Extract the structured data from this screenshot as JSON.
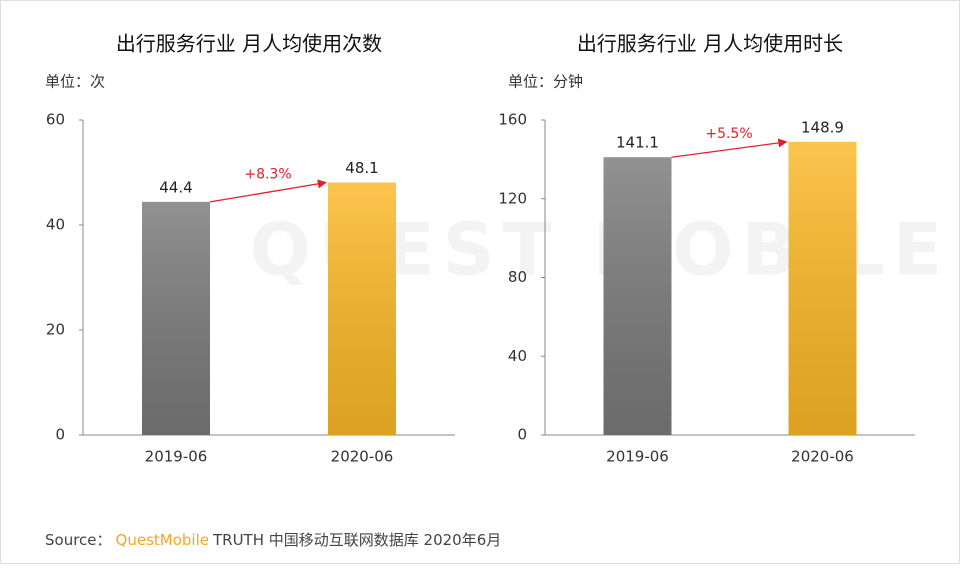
{
  "watermark": "QUEST MOBILE",
  "chart_data": [
    {
      "type": "bar",
      "title": "出行服务行业 月人均使用次数",
      "unit": "单位：次",
      "categories": [
        "2019-06",
        "2020-06"
      ],
      "values": [
        44.4,
        48.1
      ],
      "colors": [
        "#7a7a7a",
        "#fbb826"
      ],
      "ylim": [
        0,
        60
      ],
      "yticks": [
        0,
        20,
        40,
        60
      ],
      "annotation": "+8.3%",
      "annotation_color": "#e0202e"
    },
    {
      "type": "bar",
      "title": "出行服务行业 月人均使用时长",
      "unit": "单位：分钟",
      "categories": [
        "2019-06",
        "2020-06"
      ],
      "values": [
        141.1,
        148.9
      ],
      "colors": [
        "#7a7a7a",
        "#fbb826"
      ],
      "ylim": [
        0,
        160
      ],
      "yticks": [
        0,
        40,
        80,
        120,
        160
      ],
      "annotation": "+5.5%",
      "annotation_color": "#e0202e"
    }
  ],
  "source": {
    "label": "Source：",
    "brand": "QuestMobile",
    "text": "TRUTH 中国移动互联网数据库 2020年6月"
  }
}
